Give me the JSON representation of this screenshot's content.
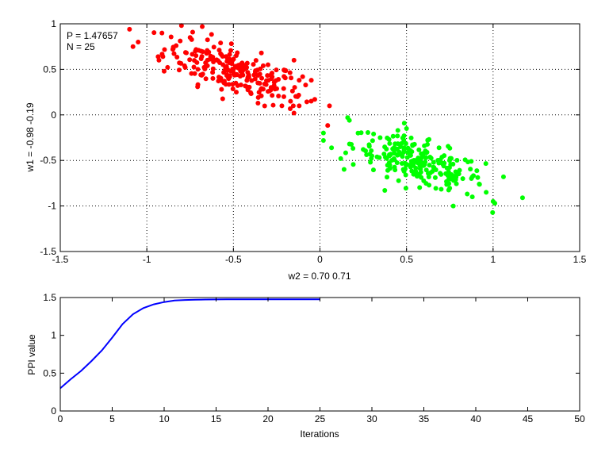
{
  "chart_data": [
    {
      "type": "scatter",
      "title": "",
      "xlabel": "w2 = 0.70  0.71",
      "ylabel": "w1 = -0.98  -0.19",
      "xlim": [
        -1.5,
        1.5
      ],
      "ylim": [
        -1.5,
        1
      ],
      "xticks": [
        -1.5,
        -1,
        -0.5,
        0,
        0.5,
        1,
        1.5
      ],
      "xtick_labels": [
        "-1.5",
        "-1",
        "-0.5",
        "0",
        "0.5",
        "1",
        "1.5"
      ],
      "yticks": [
        -1.5,
        -1,
        -0.5,
        0,
        0.5,
        1
      ],
      "ytick_labels": [
        "-1.5",
        "-1",
        "-0.5",
        "0",
        "0.5",
        "1"
      ],
      "grid": true,
      "grid_style": "dotted",
      "annotations": [
        "P = 1.47657",
        "N = 25"
      ],
      "series": [
        {
          "color": "#ff0000",
          "cluster": {
            "center": [
              -0.5,
              0.48
            ],
            "spread": [
              0.2,
              0.13
            ],
            "slope": -0.62,
            "count": 230
          },
          "x": [
            -1.1,
            -1.05,
            -1.08,
            -0.93,
            -0.9,
            -0.85,
            -0.8,
            -0.75,
            -0.72,
            -0.68,
            -0.65,
            -0.3,
            -0.28,
            -0.22,
            -0.17,
            -0.15,
            -0.13,
            -0.12,
            -0.1,
            -0.05,
            -0.03,
            -0.15,
            -0.12
          ],
          "y": [
            0.94,
            0.8,
            0.75,
            0.6,
            0.48,
            0.72,
            0.98,
            0.85,
            0.7,
            0.97,
            0.6,
            0.55,
            0.3,
            0.1,
            0.15,
            0.02,
            0.2,
            0.38,
            0.42,
            0.38,
            0.17,
            0.6,
            0.1
          ]
        },
        {
          "color": "#00ff00",
          "cluster": {
            "center": [
              0.57,
              -0.53
            ],
            "spread": [
              0.19,
              0.12
            ],
            "slope": -0.55,
            "count": 220
          },
          "x": [
            0.16,
            0.17,
            0.02,
            0.12,
            0.22,
            0.25,
            0.3,
            0.45,
            0.5,
            0.88,
            0.92,
            0.96,
            1.0,
            1.01,
            1.06,
            1.17,
            0.77
          ],
          "y": [
            -0.03,
            -0.06,
            -0.28,
            -0.48,
            -0.2,
            -0.38,
            -0.45,
            -0.17,
            -0.15,
            -0.9,
            -0.76,
            -0.85,
            -0.95,
            -0.97,
            -0.68,
            -0.91,
            -1.0
          ]
        }
      ]
    },
    {
      "type": "line",
      "title": "",
      "xlabel": "Iterations",
      "ylabel": "PPI value",
      "xlim": [
        0,
        50
      ],
      "ylim": [
        0,
        1.5
      ],
      "xticks": [
        0,
        5,
        10,
        15,
        20,
        25,
        30,
        35,
        40,
        45,
        50
      ],
      "xtick_labels": [
        "0",
        "5",
        "10",
        "15",
        "20",
        "25",
        "30",
        "35",
        "40",
        "45",
        "50"
      ],
      "yticks": [
        0,
        0.5,
        1,
        1.5
      ],
      "ytick_labels": [
        "0",
        "0.5",
        "1",
        "1.5"
      ],
      "grid": false,
      "series": [
        {
          "color": "#0000ff",
          "x": [
            0,
            1,
            2,
            3,
            4,
            5,
            6,
            7,
            8,
            9,
            10,
            11,
            12,
            13,
            14,
            15,
            16,
            17,
            18,
            19,
            20,
            21,
            22,
            23,
            24,
            25
          ],
          "y": [
            0.3,
            0.42,
            0.53,
            0.66,
            0.8,
            0.97,
            1.15,
            1.28,
            1.36,
            1.41,
            1.44,
            1.46,
            1.467,
            1.472,
            1.474,
            1.475,
            1.476,
            1.476,
            1.4765,
            1.4765,
            1.4766,
            1.4766,
            1.4766,
            1.4766,
            1.4766,
            1.4766
          ]
        }
      ]
    }
  ]
}
